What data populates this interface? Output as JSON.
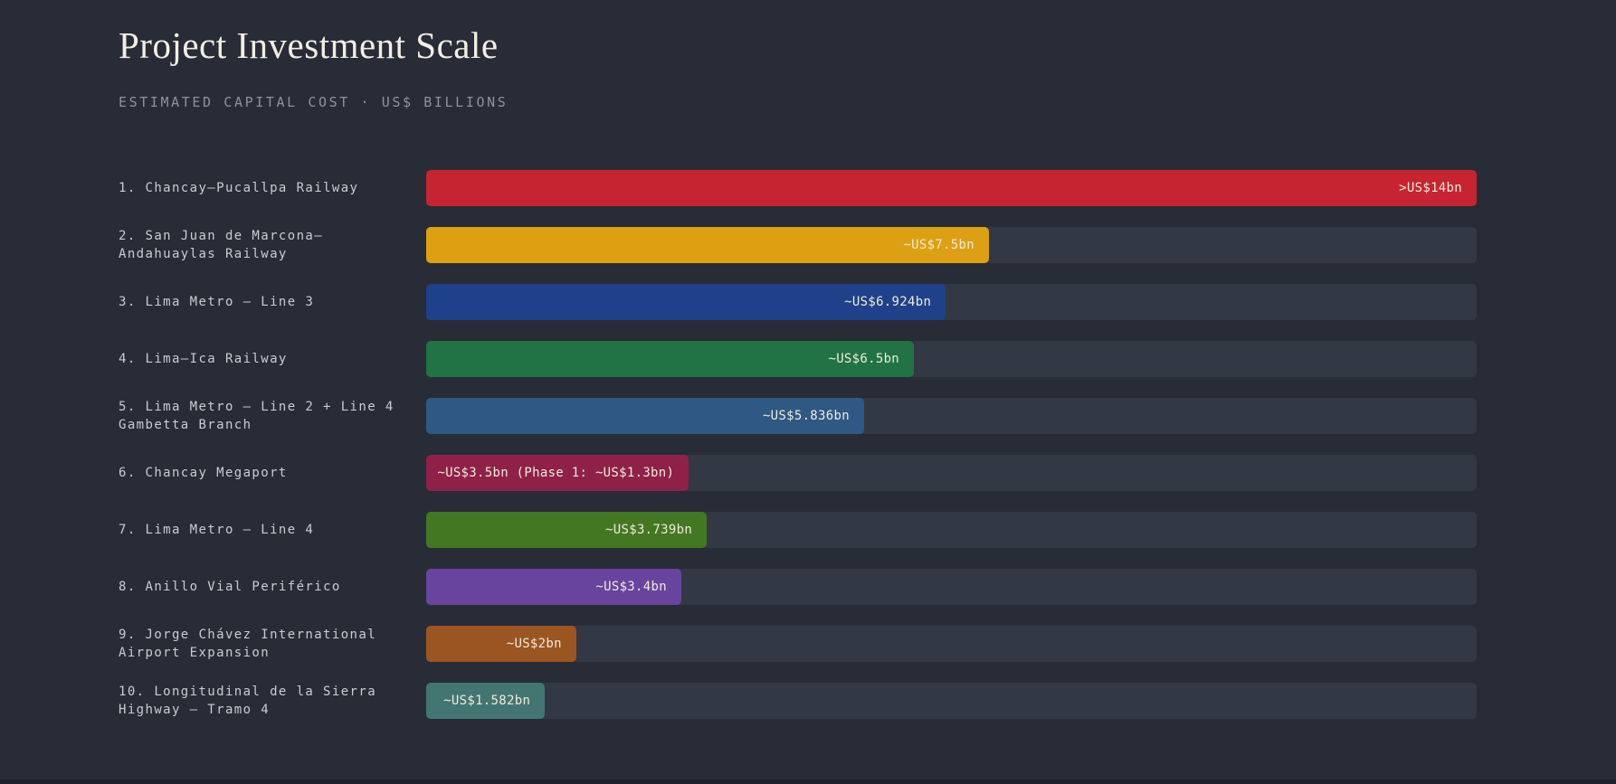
{
  "header": {
    "title": "Project Investment Scale",
    "subtitle": "ESTIMATED CAPITAL COST · US$ BILLIONS"
  },
  "colors": {
    "background": "#282c37",
    "track": "#333845",
    "title_text": "#f2eee3",
    "subtitle_text": "#8d929d",
    "label_text": "#c9ccd3",
    "value_text": "#efeadb"
  },
  "chart_data": {
    "type": "bar",
    "orientation": "horizontal",
    "title": "Project Investment Scale",
    "subtitle": "ESTIMATED CAPITAL COST · US$ BILLIONS",
    "value_unit": "US$ billions",
    "xlim": [
      0,
      14
    ],
    "grid": false,
    "legend": false,
    "bars": [
      {
        "label": "1. Chancay–Pucallpa Railway",
        "value": 14,
        "value_label": ">US$14bn",
        "color": "#c72432"
      },
      {
        "label": "2. San Juan de Marcona–Andahuaylas Railway",
        "value": 7.5,
        "value_label": "~US$7.5bn",
        "color": "#dda012"
      },
      {
        "label": "3. Lima Metro — Line 3",
        "value": 6.924,
        "value_label": "~US$6.924bn",
        "color": "#1f4189"
      },
      {
        "label": "4. Lima–Ica Railway",
        "value": 6.5,
        "value_label": "~US$6.5bn",
        "color": "#217245"
      },
      {
        "label": "5. Lima Metro — Line 2 + Line 4 Gambetta Branch",
        "value": 5.836,
        "value_label": "~US$5.836bn",
        "color": "#2f5884"
      },
      {
        "label": "6. Chancay Megaport",
        "value": 3.5,
        "value_label": "~US$3.5bn (Phase 1: ~US$1.3bn)",
        "color": "#8f2149"
      },
      {
        "label": "7. Lima Metro — Line 4",
        "value": 3.739,
        "value_label": "~US$3.739bn",
        "color": "#447722"
      },
      {
        "label": "8. Anillo Vial Periférico",
        "value": 3.4,
        "value_label": "~US$3.4bn",
        "color": "#68449f"
      },
      {
        "label": "9. Jorge Chávez International Airport Expansion",
        "value": 2,
        "value_label": "~US$2bn",
        "color": "#9a5521"
      },
      {
        "label": "10. Longitudinal de la Sierra Highway — Tramo 4",
        "value": 1.582,
        "value_label": "~US$1.582bn",
        "color": "#437672"
      }
    ]
  }
}
